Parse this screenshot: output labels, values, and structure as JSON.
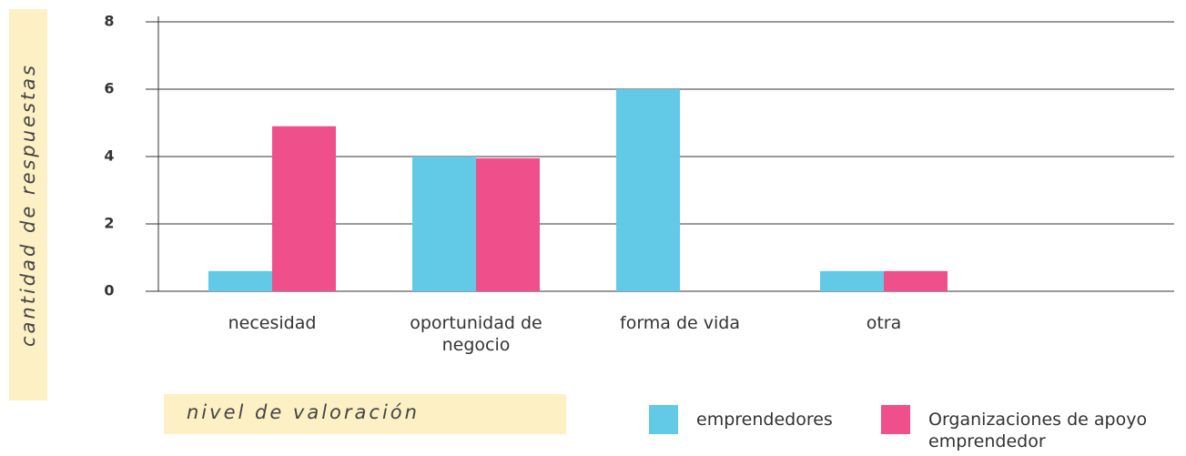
{
  "chart_data": {
    "type": "bar",
    "ylabel": "cantidad de respuestas",
    "xlabel": "nivel de valoración",
    "categories": [
      "necesidad",
      "oportunidad de negocio",
      "forma de vida",
      "otra"
    ],
    "series": [
      {
        "name": "emprendedores",
        "color": "#62c9e6",
        "values": [
          0.6,
          4,
          6,
          0.6
        ]
      },
      {
        "name": "Organizaciones de apoyo emprendedor",
        "color": "#ef4f8a",
        "values": [
          4.9,
          3.95,
          0,
          0.6
        ]
      }
    ],
    "ylim": [
      0,
      8
    ],
    "yticks": [
      0,
      2,
      4,
      6,
      8
    ],
    "grid": true
  }
}
